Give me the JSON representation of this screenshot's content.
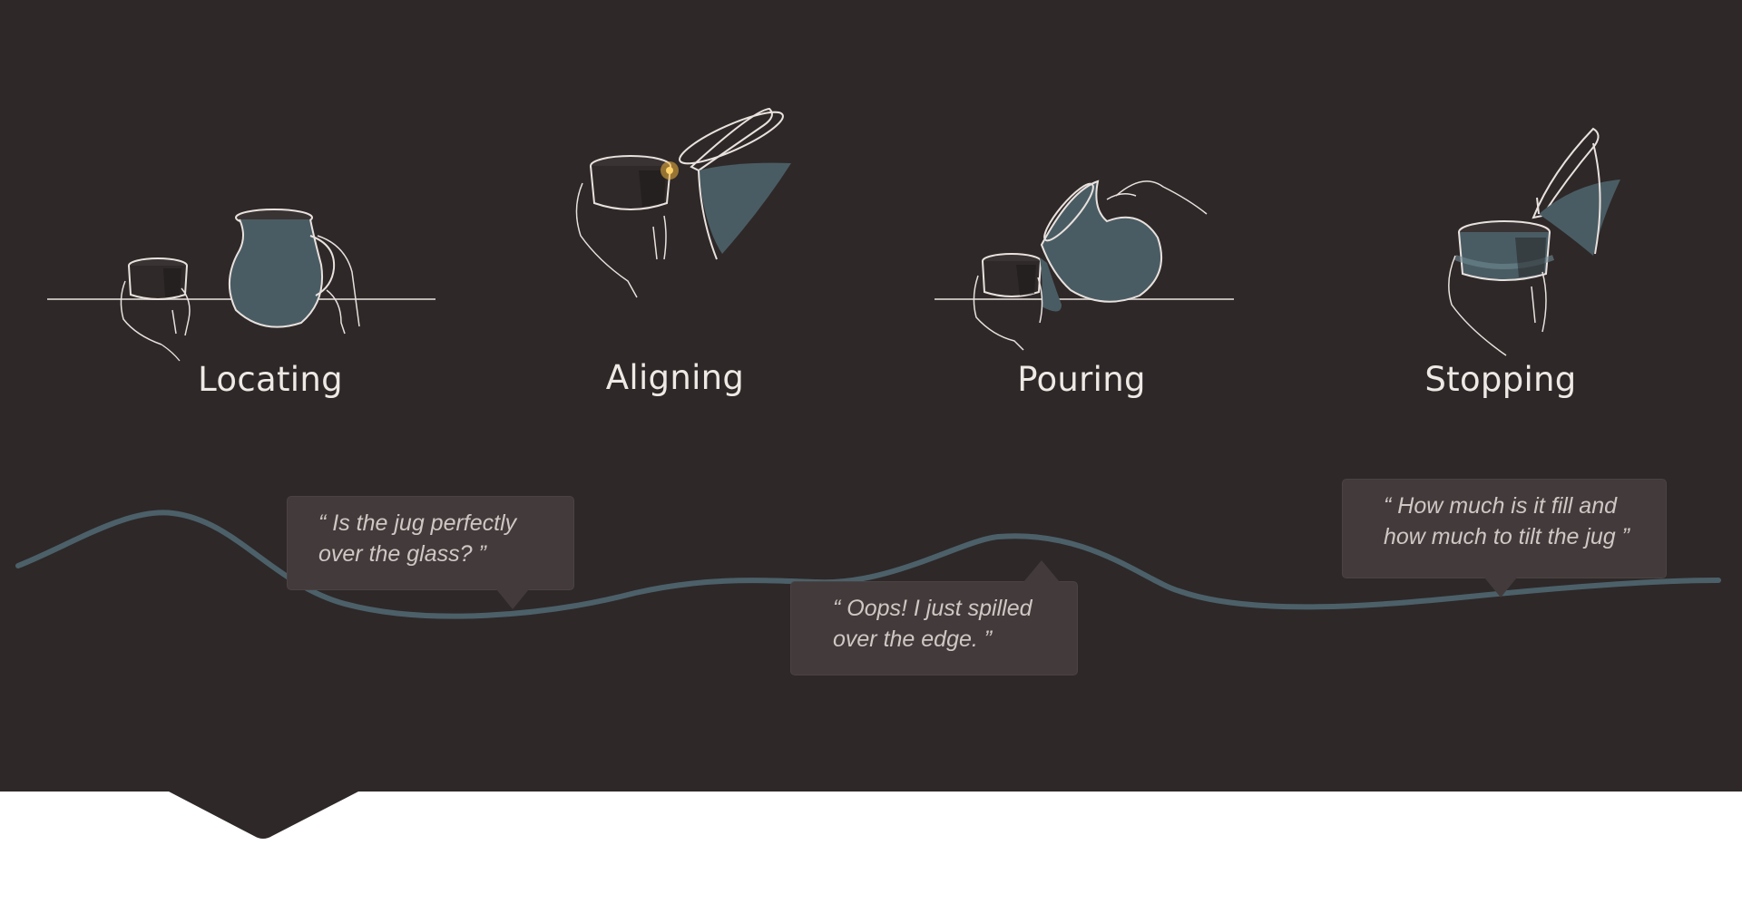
{
  "steps": [
    {
      "label": "Locating",
      "icon": "hand-glass-jug-on-table-icon"
    },
    {
      "label": "Aligning",
      "icon": "hand-glass-tilted-jug-icon"
    },
    {
      "label": "Pouring",
      "icon": "jug-pouring-into-glass-icon"
    },
    {
      "label": "Stopping",
      "icon": "full-glass-jug-stop-icon"
    }
  ],
  "quotes": [
    {
      "lines": [
        "“ Is the jug perfectly",
        "over the glass? ”"
      ]
    },
    {
      "lines": [
        "“ Oops! I just spilled",
        "over the edge. ”"
      ]
    },
    {
      "lines": [
        "“ How much is it fill and",
        "how much to tilt the jug ”"
      ]
    }
  ],
  "colors": {
    "background": "#2e2828",
    "bubble": "#433b3b",
    "line_art": "#e8e1de",
    "water": "#4a5c63",
    "curve": "#4c6069",
    "highlight": "#f0b53c"
  }
}
